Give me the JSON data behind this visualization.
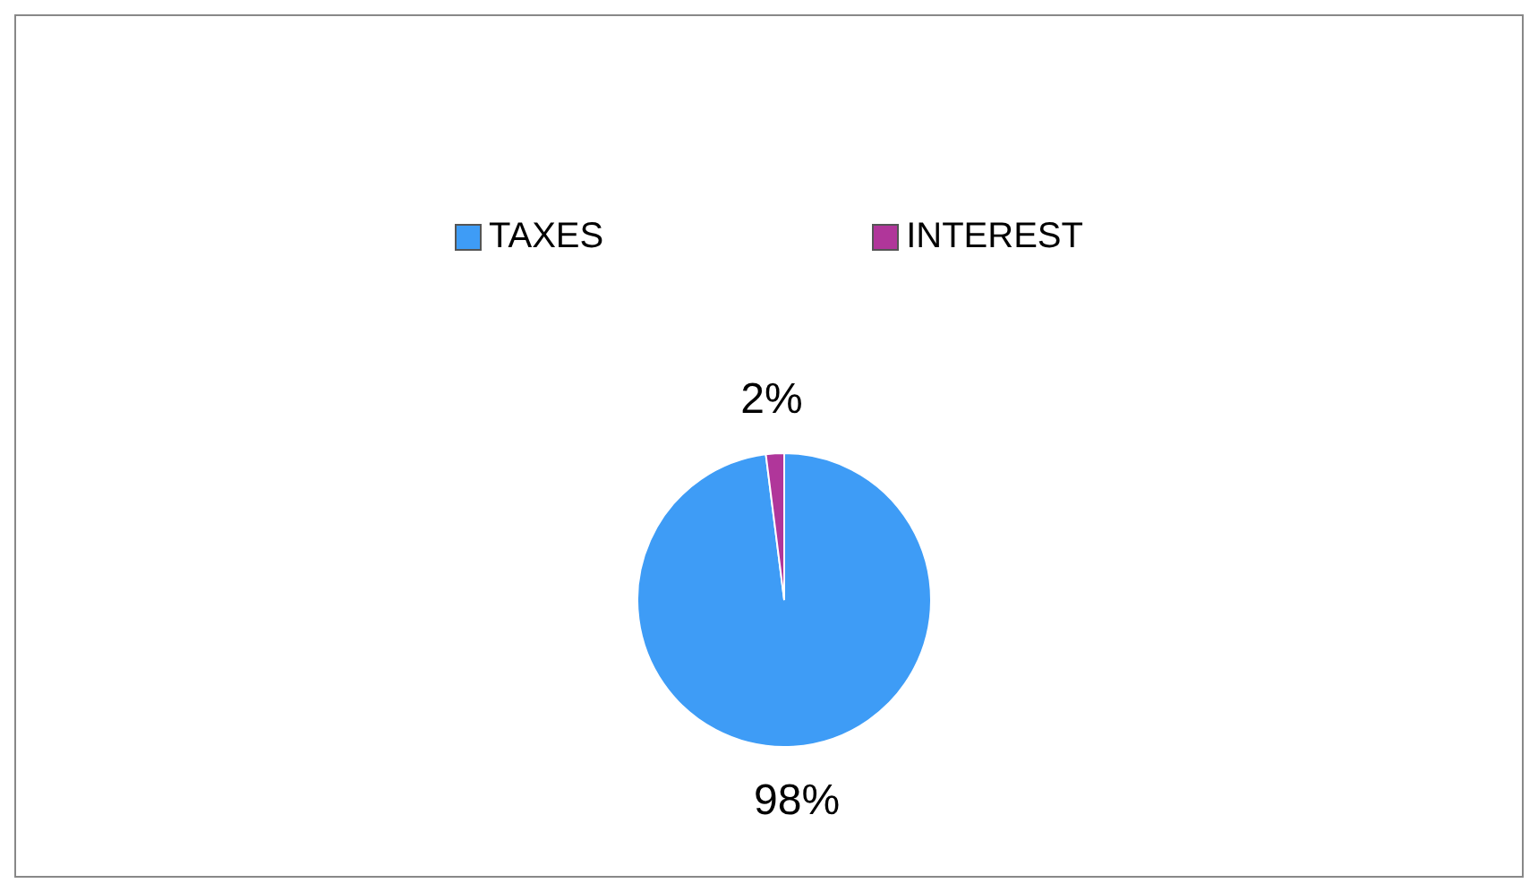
{
  "chart_data": {
    "type": "pie",
    "categories": [
      "TAXES",
      "INTEREST"
    ],
    "values": [
      98,
      2
    ],
    "colors": [
      "#3e9cf6",
      "#b0369a"
    ],
    "value_labels": [
      "98%",
      "2%"
    ],
    "legend": "top"
  }
}
